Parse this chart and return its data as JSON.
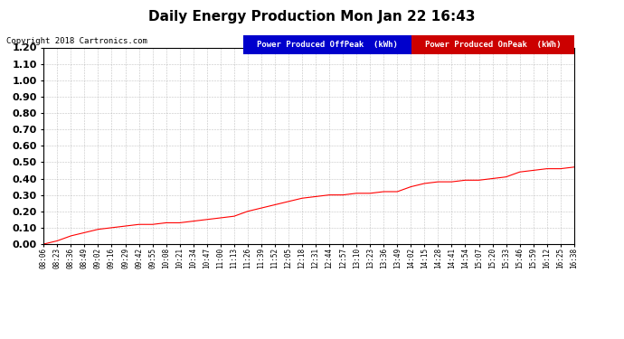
{
  "title": "Daily Energy Production Mon Jan 22 16:43",
  "copyright_text": "Copyright 2018 Cartronics.com",
  "legend_labels": [
    "Power Produced OffPeak  (kWh)",
    "Power Produced OnPeak  (kWh)"
  ],
  "legend_colors": [
    "#0000cc",
    "#cc0000"
  ],
  "line_color": "#ff0000",
  "background_color": "#ffffff",
  "grid_color": "#aaaaaa",
  "ylim": [
    0.0,
    1.2
  ],
  "yticks": [
    0.0,
    0.1,
    0.2,
    0.3,
    0.4,
    0.5,
    0.6,
    0.7,
    0.8,
    0.9,
    1.0,
    1.1,
    1.2
  ],
  "xtick_labels": [
    "08:06",
    "08:23",
    "08:36",
    "08:49",
    "09:02",
    "09:16",
    "09:29",
    "09:42",
    "09:55",
    "10:08",
    "10:21",
    "10:34",
    "10:47",
    "11:00",
    "11:13",
    "11:26",
    "11:39",
    "11:52",
    "12:05",
    "12:18",
    "12:31",
    "12:44",
    "12:57",
    "13:10",
    "13:23",
    "13:36",
    "13:49",
    "14:02",
    "14:15",
    "14:28",
    "14:41",
    "14:54",
    "15:07",
    "15:20",
    "15:33",
    "15:46",
    "15:59",
    "16:12",
    "16:25",
    "16:38"
  ],
  "y_values": [
    0.0,
    0.02,
    0.05,
    0.07,
    0.09,
    0.1,
    0.11,
    0.12,
    0.12,
    0.13,
    0.13,
    0.14,
    0.15,
    0.16,
    0.17,
    0.2,
    0.22,
    0.24,
    0.26,
    0.28,
    0.29,
    0.3,
    0.3,
    0.31,
    0.31,
    0.32,
    0.32,
    0.35,
    0.37,
    0.38,
    0.38,
    0.39,
    0.39,
    0.4,
    0.41,
    0.44,
    0.45,
    0.46,
    0.46,
    0.47
  ],
  "title_fontsize": 11,
  "copyright_fontsize": 6.5,
  "ytick_fontsize": 8,
  "xtick_fontsize": 5.5,
  "legend_fontsize": 6.5
}
